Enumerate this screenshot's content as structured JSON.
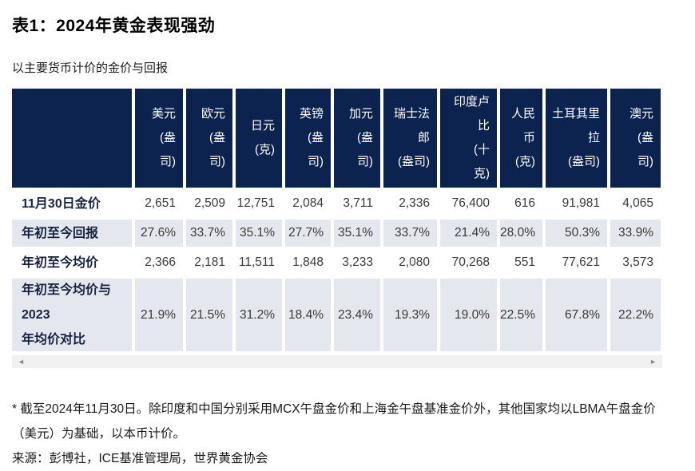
{
  "page": {
    "title": "表1：2024年黄金表现强劲",
    "subtitle": "以主要货币计价的金价与回报"
  },
  "table": {
    "columns": [
      {
        "name": "usd-per-oz",
        "label": "美元(盎司)",
        "display": "美元\n(盎\n司)"
      },
      {
        "name": "eur-per-oz",
        "label": "欧元(盎司)",
        "display": "欧元\n(盎\n司)"
      },
      {
        "name": "jpy-per-g",
        "label": "日元(克)",
        "display": "日元\n(克)"
      },
      {
        "name": "gbp-per-oz",
        "label": "英镑(盎司)",
        "display": "英镑\n(盎\n司)"
      },
      {
        "name": "cad-per-oz",
        "label": "加元(盎司)",
        "display": "加元\n(盎\n司)"
      },
      {
        "name": "chf-per-oz",
        "label": "瑞士法郎(盎司)",
        "display": "瑞士法\n郎\n(盎司)"
      },
      {
        "name": "inr-per-10g",
        "label": "印度卢比(十克)",
        "display": "印度卢\n比\n(十\n克)"
      },
      {
        "name": "rmb-per-g",
        "label": "人民币(克)",
        "display": "人民\n币\n(克)"
      },
      {
        "name": "try-per-oz",
        "label": "土耳其里拉(盎司)",
        "display": "土耳其里\n拉\n(盎司)"
      },
      {
        "name": "aud-per-oz",
        "label": "澳元(盎司)",
        "display": "澳元\n(盎\n司)"
      }
    ],
    "rows": [
      {
        "label": "11月30日金价",
        "shaded": false,
        "values": [
          "2,651",
          "2,509",
          "12,751",
          "2,084",
          "3,711",
          "2,336",
          "76,400",
          "616",
          "91,981",
          "4,065"
        ]
      },
      {
        "label": "年初至今回报",
        "shaded": true,
        "values": [
          "27.6%",
          "33.7%",
          "35.1%",
          "27.7%",
          "35.1%",
          "33.7%",
          "21.4%",
          "28.0%",
          "50.3%",
          "33.9%"
        ]
      },
      {
        "label": "年初至今均价",
        "shaded": false,
        "values": [
          "2,366",
          "2,181",
          "11,511",
          "1,848",
          "3,233",
          "2,080",
          "70,268",
          "551",
          "77,621",
          "3,573"
        ]
      },
      {
        "label": "年初至今均价与\n2023\n年均价对比",
        "shaded": true,
        "values": [
          "21.9%",
          "21.5%",
          "31.2%",
          "18.4%",
          "23.4%",
          "19.3%",
          "19.0%",
          "22.5%",
          "67.8%",
          "22.2%"
        ]
      }
    ]
  },
  "scrollbar": {
    "left_arrow": "◄",
    "right_arrow": "►"
  },
  "footnote": "* 截至2024年11月30日。除印度和中国分别采用MCX午盘金价和上海金午盘基准金价外，其他国家均以LBMA午盘金价（美元）为基础，以本币计价。",
  "source": "来源：彭博社，ICE基准管理局，世界黄金协会",
  "colors": {
    "header_bg": "#0c2350",
    "shaded_row_bg": "#e4e7ed",
    "scrollbar_track": "#f1f1f1"
  }
}
